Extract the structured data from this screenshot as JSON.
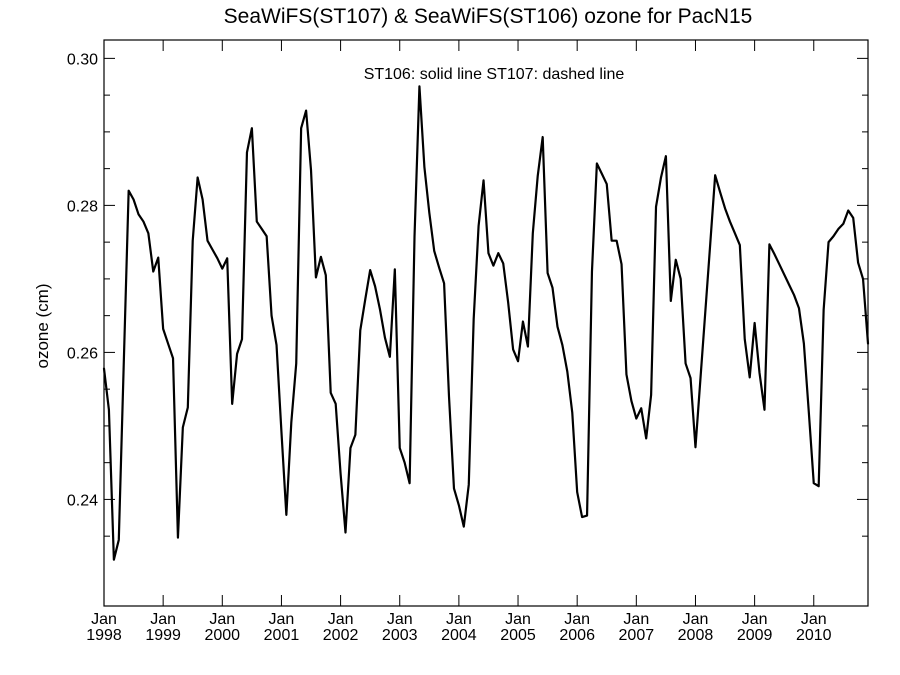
{
  "chart_data": {
    "type": "line",
    "title": "SeaWiFS(ST107) & SeaWiFS(ST106)  ozone for PacN15",
    "annotation": "ST106: solid line   ST107: dashed line",
    "xlabel": "",
    "ylabel": "ozone (cm)",
    "xlim": [
      1998.0,
      2010.917
    ],
    "ylim": [
      0.2255,
      0.3025
    ],
    "y_ticks": [
      0.24,
      0.26,
      0.28,
      0.3
    ],
    "y_tick_labels": [
      "0.24",
      "0.26",
      "0.28",
      "0.30"
    ],
    "x_ticks": [
      1998,
      1999,
      2000,
      2001,
      2002,
      2003,
      2004,
      2005,
      2006,
      2007,
      2008,
      2009,
      2010
    ],
    "x_tick_month_label": "Jan",
    "x_tick_year_labels": [
      "1998",
      "1999",
      "2000",
      "2001",
      "2002",
      "2003",
      "2004",
      "2005",
      "2006",
      "2007",
      "2008",
      "2009",
      "2010"
    ],
    "grid": false,
    "series": [
      {
        "line_style": "solid",
        "color": "#000000",
        "x": [
          1998.0,
          1998.083,
          1998.167,
          1998.25,
          1998.333,
          1998.417,
          1998.5,
          1998.583,
          1998.667,
          1998.75,
          1998.833,
          1998.917,
          1999.0,
          1999.083,
          1999.167,
          1999.25,
          1999.333,
          1999.417,
          1999.5,
          1999.583,
          1999.667,
          1999.75,
          1999.833,
          1999.917,
          2000.0,
          2000.083,
          2000.167,
          2000.25,
          2000.333,
          2000.417,
          2000.5,
          2000.583,
          2000.667,
          2000.75,
          2000.833,
          2000.917,
          2001.0,
          2001.083,
          2001.167,
          2001.25,
          2001.333,
          2001.417,
          2001.5,
          2001.583,
          2001.667,
          2001.75,
          2001.833,
          2001.917,
          2002.0,
          2002.083,
          2002.167,
          2002.25,
          2002.333,
          2002.417,
          2002.5,
          2002.583,
          2002.667,
          2002.75,
          2002.833,
          2002.917,
          2003.0,
          2003.083,
          2003.167,
          2003.25,
          2003.333,
          2003.417,
          2003.5,
          2003.583,
          2003.667,
          2003.75,
          2003.833,
          2003.917,
          2004.0,
          2004.083,
          2004.167,
          2004.25,
          2004.333,
          2004.417,
          2004.5,
          2004.583,
          2004.667,
          2004.75,
          2004.833,
          2004.917,
          2005.0,
          2005.083,
          2005.167,
          2005.25,
          2005.333,
          2005.417,
          2005.5,
          2005.583,
          2005.667,
          2005.75,
          2005.833,
          2005.917,
          2006.0,
          2006.083,
          2006.167,
          2006.25,
          2006.333,
          2006.417,
          2006.5,
          2006.583,
          2006.667,
          2006.75,
          2006.833,
          2006.917,
          2007.0,
          2007.083,
          2007.167,
          2007.25,
          2007.333,
          2007.417,
          2007.5,
          2007.583,
          2007.667,
          2007.75,
          2007.833,
          2007.917,
          2008.0,
          2008.25,
          2008.333,
          2008.417,
          2008.5,
          2008.583,
          2008.667,
          2008.75,
          2008.833,
          2008.917,
          2009.0,
          2009.083,
          2009.167,
          2009.25,
          2009.333,
          2009.417,
          2009.583,
          2009.667,
          2009.75,
          2009.833,
          2009.917,
          2010.0,
          2010.083,
          2010.167,
          2010.25,
          2010.333,
          2010.417,
          2010.5,
          2010.583,
          2010.667,
          2010.75,
          2010.833,
          2010.917
        ],
        "y": [
          0.2578,
          0.2522,
          0.2318,
          0.2345,
          0.2582,
          0.282,
          0.2808,
          0.2788,
          0.2778,
          0.2762,
          0.271,
          0.2729,
          0.2632,
          0.2612,
          0.2592,
          0.2348,
          0.2498,
          0.2525,
          0.2752,
          0.2838,
          0.2808,
          0.2752,
          0.274,
          0.2728,
          0.2714,
          0.2728,
          0.253,
          0.2598,
          0.2618,
          0.2872,
          0.2905,
          0.2778,
          0.2768,
          0.2758,
          0.265,
          0.261,
          0.2492,
          0.2379,
          0.2505,
          0.2585,
          0.2905,
          0.2929,
          0.2848,
          0.2702,
          0.273,
          0.2705,
          0.2545,
          0.253,
          0.2435,
          0.2355,
          0.247,
          0.2488,
          0.263,
          0.2672,
          0.2712,
          0.269,
          0.2658,
          0.262,
          0.2594,
          0.2713,
          0.247,
          0.245,
          0.2422,
          0.2758,
          0.2962,
          0.2852,
          0.279,
          0.2738,
          0.2715,
          0.2694,
          0.254,
          0.2415,
          0.2392,
          0.2363,
          0.242,
          0.2645,
          0.2772,
          0.2834,
          0.2735,
          0.2718,
          0.2735,
          0.2721,
          0.2668,
          0.2604,
          0.2588,
          0.2642,
          0.2608,
          0.2762,
          0.284,
          0.2893,
          0.2708,
          0.2688,
          0.2635,
          0.261,
          0.2574,
          0.2518,
          0.241,
          0.2376,
          0.2378,
          0.271,
          0.2857,
          0.2843,
          0.2829,
          0.2752,
          0.2752,
          0.272,
          0.257,
          0.2534,
          0.251,
          0.2524,
          0.2483,
          0.2542,
          0.2798,
          0.2838,
          0.2867,
          0.267,
          0.2726,
          0.27,
          0.2585,
          0.2565,
          0.2471,
          0.2748,
          0.2841,
          0.2818,
          0.2796,
          0.2778,
          0.2762,
          0.2746,
          0.2618,
          0.2566,
          0.264,
          0.2572,
          0.2522,
          0.2747,
          0.2734,
          0.272,
          0.2692,
          0.2678,
          0.266,
          0.2612,
          0.2518,
          0.2422,
          0.2418,
          0.2658,
          0.275,
          0.2758,
          0.2768,
          0.2775,
          0.2793,
          0.2783,
          0.2722,
          0.27,
          0.2612
        ]
      }
    ]
  }
}
